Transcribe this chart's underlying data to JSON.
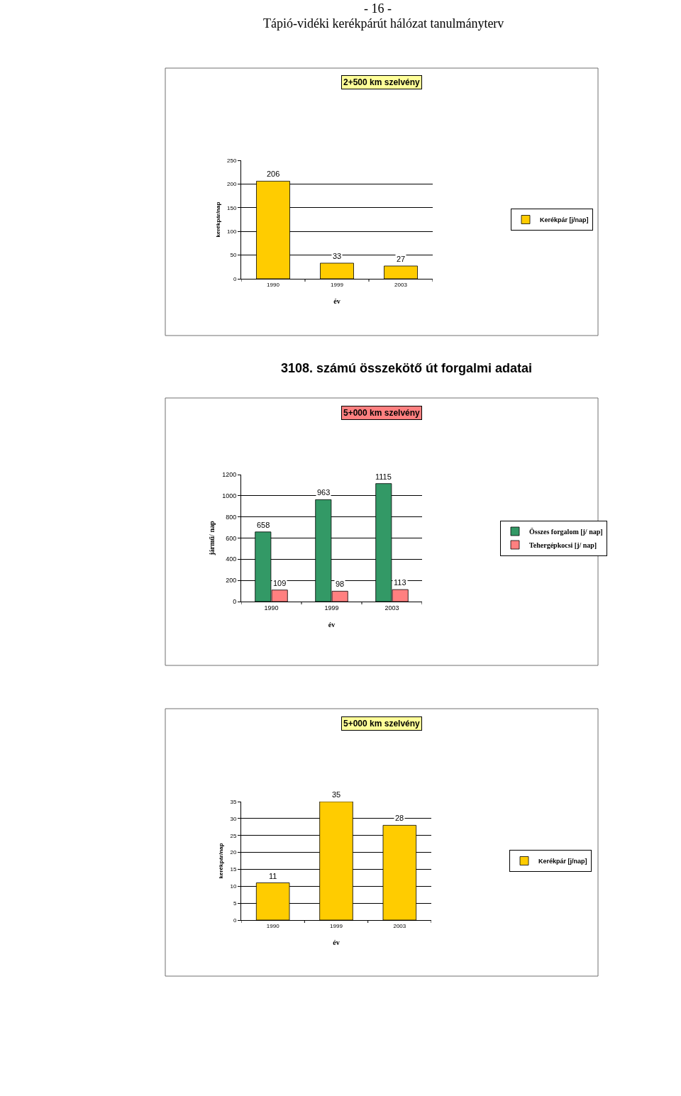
{
  "chart_data": [
    {
      "type": "bar",
      "title": "2+500 km szelvény",
      "xlabel": "év",
      "ylabel": "kerékpár/nap",
      "annotations": [
        "- 16 -",
        "Tápió-vidéki kerékpárút hálózat tanulmányterv"
      ],
      "categories": [
        "1990",
        "1999",
        "2003"
      ],
      "series": [
        {
          "name": "Kerékpár [j/nap]",
          "color": "#ffcc00",
          "values": [
            206,
            33,
            27
          ]
        }
      ],
      "ylim": [
        0,
        250
      ],
      "yticks": [
        0,
        50,
        100,
        150,
        200,
        250
      ],
      "grid": "y",
      "legend": "right",
      "data_labels": true
    },
    {
      "type": "bar",
      "title": "5+000 km szelvény",
      "xlabel": "év",
      "ylabel": "jármű/ nap",
      "annotations": [
        "3108. számú összekötő út forgalmi adatai"
      ],
      "categories": [
        "1990",
        "1999",
        "2003"
      ],
      "series": [
        {
          "name": "Összes forgalom [j/ nap]",
          "color": "#339966",
          "values": [
            658,
            963,
            1115
          ]
        },
        {
          "name": "Tehergépkocsi [j/ nap]",
          "color": "#ff8080",
          "values": [
            109,
            98,
            113
          ]
        }
      ],
      "ylim": [
        0,
        1200
      ],
      "yticks": [
        0,
        200,
        400,
        600,
        800,
        1000,
        1200
      ],
      "grid": "y",
      "legend": "right",
      "data_labels": true
    },
    {
      "type": "bar",
      "title": "5+000 km szelvény",
      "xlabel": "év",
      "ylabel": "kerékpár/nap",
      "categories": [
        "1990",
        "1999",
        "2003"
      ],
      "series": [
        {
          "name": "Kerékpár [j/nap]",
          "color": "#ffcc00",
          "values": [
            11,
            35,
            28
          ]
        }
      ],
      "ylim": [
        0,
        35
      ],
      "yticks": [
        0,
        5,
        10,
        15,
        20,
        25,
        30,
        35
      ],
      "grid": "y",
      "legend": "right",
      "data_labels": true
    }
  ]
}
